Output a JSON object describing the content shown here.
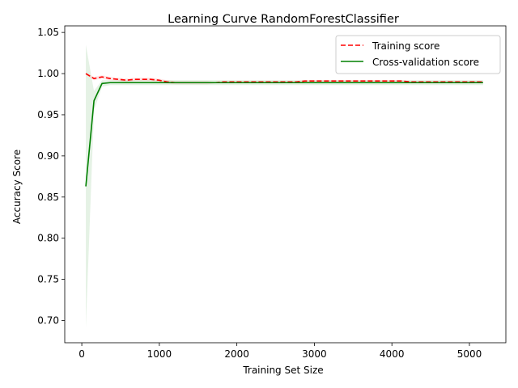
{
  "chart_data": {
    "type": "line",
    "title": "Learning Curve RandomForestClassifier",
    "xlabel": "Training Set Size",
    "ylabel": "Accuracy Score",
    "xlim": [
      -220,
      5470
    ],
    "ylim": [
      0.673,
      1.058
    ],
    "x_ticks": [
      0,
      1000,
      2000,
      3000,
      4000,
      5000
    ],
    "x_tick_labels": [
      "0",
      "1000",
      "2000",
      "3000",
      "4000",
      "5000"
    ],
    "y_ticks": [
      0.7,
      0.75,
      0.8,
      0.85,
      0.9,
      0.95,
      1.0,
      1.05
    ],
    "y_tick_labels": [
      "0.70",
      "0.75",
      "0.80",
      "0.85",
      "0.90",
      "0.95",
      "1.00",
      "1.05"
    ],
    "legend_position": "top-right",
    "x": [
      52,
      157,
      261,
      366,
      470,
      575,
      680,
      784,
      889,
      993,
      1098,
      1202,
      1307,
      1411,
      1516,
      1621,
      1725,
      1830,
      1934,
      2039,
      2144,
      2248,
      2353,
      2457,
      2562,
      2666,
      2771,
      2876,
      2980,
      3085,
      3189,
      3294,
      3398,
      3503,
      3608,
      3712,
      3817,
      3921,
      4026,
      4130,
      4235,
      4340,
      4444,
      4549,
      4653,
      4758,
      4862,
      4967,
      5072,
      5176
    ],
    "series": [
      {
        "name": "Training score",
        "color": "#ff0000",
        "dash": "dashed",
        "values": [
          1.0,
          0.994,
          0.996,
          0.994,
          0.993,
          0.992,
          0.993,
          0.993,
          0.993,
          0.992,
          0.99,
          0.989,
          0.989,
          0.989,
          0.989,
          0.989,
          0.989,
          0.99,
          0.99,
          0.99,
          0.99,
          0.99,
          0.99,
          0.99,
          0.99,
          0.99,
          0.99,
          0.991,
          0.991,
          0.991,
          0.991,
          0.991,
          0.991,
          0.991,
          0.991,
          0.991,
          0.991,
          0.991,
          0.991,
          0.991,
          0.99,
          0.99,
          0.99,
          0.99,
          0.99,
          0.99,
          0.99,
          0.99,
          0.99,
          0.99
        ],
        "band": [
          0.001,
          0.002,
          0.002,
          0.002,
          0.002,
          0.002,
          0.002,
          0.002,
          0.002,
          0.002,
          0.002,
          0.002,
          0.002,
          0.002,
          0.002,
          0.002,
          0.001,
          0.001,
          0.001,
          0.001,
          0.001,
          0.001,
          0.001,
          0.001,
          0.001,
          0.001,
          0.001,
          0.001,
          0.001,
          0.001,
          0.001,
          0.001,
          0.001,
          0.001,
          0.001,
          0.001,
          0.001,
          0.001,
          0.001,
          0.001,
          0.001,
          0.001,
          0.001,
          0.001,
          0.001,
          0.001,
          0.001,
          0.001,
          0.001,
          0.001
        ]
      },
      {
        "name": "Cross-validation score",
        "color": "#008000",
        "dash": "solid",
        "values": [
          0.863,
          0.967,
          0.988,
          0.989,
          0.989,
          0.989,
          0.989,
          0.989,
          0.989,
          0.989,
          0.989,
          0.989,
          0.989,
          0.989,
          0.989,
          0.989,
          0.989,
          0.989,
          0.989,
          0.989,
          0.989,
          0.989,
          0.989,
          0.989,
          0.989,
          0.989,
          0.989,
          0.989,
          0.989,
          0.989,
          0.989,
          0.989,
          0.989,
          0.989,
          0.989,
          0.989,
          0.989,
          0.989,
          0.989,
          0.989,
          0.989,
          0.989,
          0.989,
          0.989,
          0.989,
          0.989,
          0.989,
          0.989,
          0.989,
          0.989
        ],
        "band": [
          0.172,
          0.012,
          0.004,
          0.003,
          0.003,
          0.003,
          0.003,
          0.003,
          0.003,
          0.003,
          0.003,
          0.003,
          0.003,
          0.003,
          0.003,
          0.003,
          0.003,
          0.003,
          0.003,
          0.003,
          0.003,
          0.003,
          0.003,
          0.003,
          0.003,
          0.003,
          0.003,
          0.003,
          0.003,
          0.003,
          0.003,
          0.003,
          0.003,
          0.003,
          0.003,
          0.003,
          0.003,
          0.003,
          0.003,
          0.003,
          0.003,
          0.003,
          0.003,
          0.003,
          0.003,
          0.003,
          0.003,
          0.003,
          0.003,
          0.003
        ]
      }
    ]
  }
}
